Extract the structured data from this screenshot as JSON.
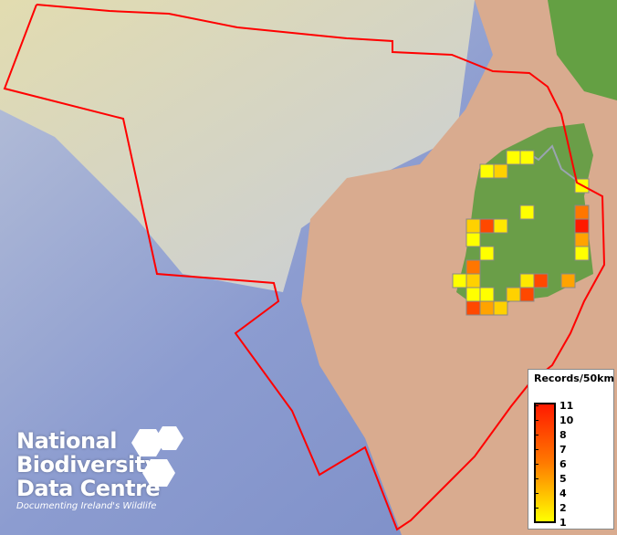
{
  "legend": {
    "title": "Records/50km",
    "ticks": [
      "11",
      "10",
      "8",
      "7",
      "6",
      "5",
      "4",
      "2",
      "1"
    ],
    "colors": {
      "low": "#ffff00",
      "mid": "#ff8000",
      "high": "#ff1a00"
    }
  },
  "logo": {
    "line1": "National",
    "line2": "Biodiversity",
    "line3": "Data Centre",
    "tagline": "Documenting Ireland's Wildlife"
  },
  "map": {
    "boundary_color": "#ff0000",
    "cell_values": [
      1,
      1,
      1,
      3,
      1,
      1,
      7,
      3,
      9,
      2,
      11,
      1,
      5,
      1,
      1,
      7,
      1,
      3,
      2,
      9,
      5,
      1,
      1,
      3,
      9,
      9,
      5,
      3
    ]
  }
}
